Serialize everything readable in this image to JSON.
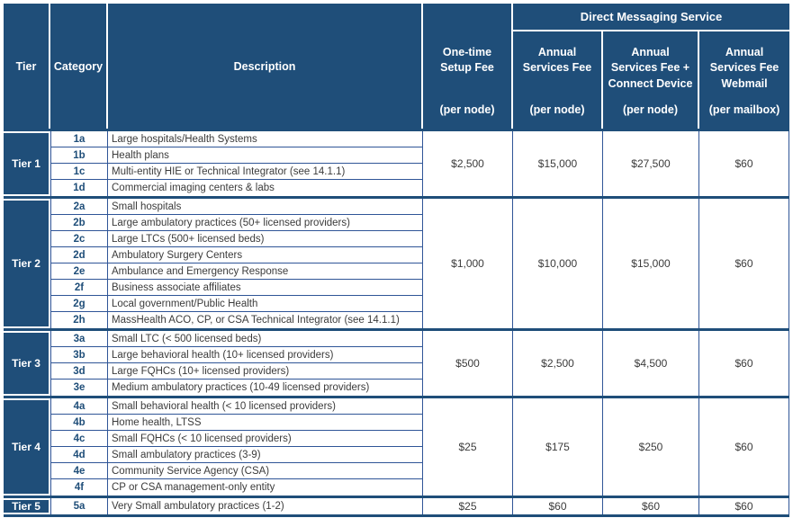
{
  "colors": {
    "header_navy": "#1F4E79",
    "grid_blue": "#2F5597",
    "body_text": "#3b3b3b",
    "header_text": "#ffffff"
  },
  "table": {
    "group_header": "Direct Messaging Service",
    "columns": {
      "tier": "Tier",
      "category": "Category",
      "description": "Description",
      "one_time": {
        "title": "One-time\nSetup Fee",
        "unit": "(per node)"
      },
      "annual": {
        "title": "Annual\nServices Fee",
        "unit": "(per node)"
      },
      "annual_connect": {
        "title": "Annual\nServices Fee +\nConnect Device",
        "unit": "(per node)"
      },
      "annual_webmail": {
        "title": "Annual\nServices Fee\nWebmail",
        "unit": "(per mailbox)"
      }
    },
    "tiers": [
      {
        "tier": "Tier 1",
        "rows": [
          {
            "category": "1a",
            "description": "Large hospitals/Health Systems"
          },
          {
            "category": "1b",
            "description": "Health plans"
          },
          {
            "category": "1c",
            "description": "Multi-entity HIE or Technical Integrator (see 14.1.1)"
          },
          {
            "category": "1d",
            "description": "Commercial imaging centers & labs"
          }
        ],
        "fees": {
          "setup": "$2,500",
          "annual": "$15,000",
          "annual_connect": "$27,500",
          "webmail": "$60"
        }
      },
      {
        "tier": "Tier 2",
        "rows": [
          {
            "category": "2a",
            "description": "Small hospitals"
          },
          {
            "category": "2b",
            "description": "Large ambulatory practices (50+ licensed providers)"
          },
          {
            "category": "2c",
            "description": "Large LTCs (500+ licensed beds)"
          },
          {
            "category": "2d",
            "description": "Ambulatory Surgery Centers"
          },
          {
            "category": "2e",
            "description": "Ambulance and Emergency Response"
          },
          {
            "category": "2f",
            "description": "Business associate affiliates"
          },
          {
            "category": "2g",
            "description": "Local government/Public Health"
          },
          {
            "category": "2h",
            "description": "MassHealth ACO, CP, or CSA Technical Integrator (see 14.1.1)"
          }
        ],
        "fees": {
          "setup": "$1,000",
          "annual": "$10,000",
          "annual_connect": "$15,000",
          "webmail": "$60"
        }
      },
      {
        "tier": "Tier 3",
        "rows": [
          {
            "category": "3a",
            "description": "Small LTC  (< 500 licensed beds)"
          },
          {
            "category": "3b",
            "description": "Large behavioral health (10+ licensed providers)"
          },
          {
            "category": "3d",
            "description": "Large FQHCs (10+ licensed providers)"
          },
          {
            "category": "3e",
            "description": "Medium ambulatory practices (10-49 licensed providers)"
          }
        ],
        "fees": {
          "setup": "$500",
          "annual": "$2,500",
          "annual_connect": "$4,500",
          "webmail": "$60"
        }
      },
      {
        "tier": "Tier 4",
        "rows": [
          {
            "category": "4a",
            "description": "Small behavioral health (< 10 licensed providers)"
          },
          {
            "category": "4b",
            "description": "Home health, LTSS"
          },
          {
            "category": "4c",
            "description": "Small FQHCs (< 10 licensed providers)"
          },
          {
            "category": "4d",
            "description": "Small ambulatory practices (3-9)"
          },
          {
            "category": "4e",
            "description": "Community Service Agency (CSA)"
          },
          {
            "category": "4f",
            "description": "CP or CSA management-only entity"
          }
        ],
        "fees": {
          "setup": "$25",
          "annual": "$175",
          "annual_connect": "$250",
          "webmail": "$60"
        }
      },
      {
        "tier": "Tier 5",
        "rows": [
          {
            "category": "5a",
            "description": "Very Small ambulatory practices (1-2)"
          }
        ],
        "fees": {
          "setup": "$25",
          "annual": "$60",
          "annual_connect": "$60",
          "webmail": "$60"
        }
      }
    ]
  }
}
